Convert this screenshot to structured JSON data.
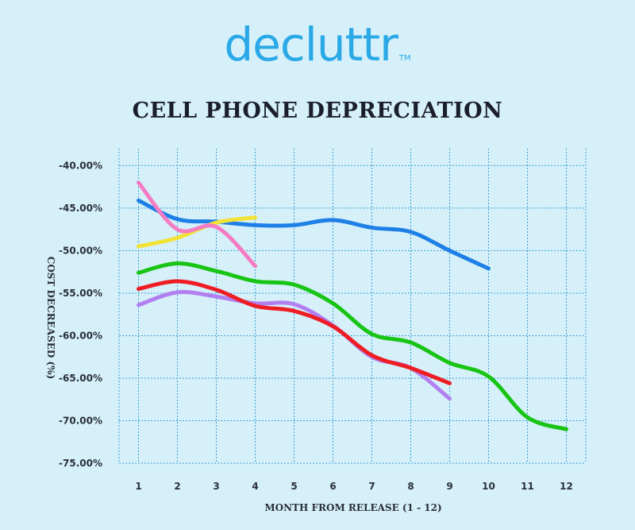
{
  "brand": {
    "logo_text": "decluttr",
    "logo_tm": "TM"
  },
  "chart_data": {
    "type": "line",
    "title": "CELL PHONE DEPRECIATION",
    "xlabel": "MONTH FROM RELEASE (1 - 12)",
    "ylabel": "COST DECREASED (%)",
    "x": [
      1,
      2,
      3,
      4,
      5,
      6,
      7,
      8,
      9,
      10,
      11,
      12
    ],
    "xlim": [
      0.5,
      12.5
    ],
    "ylim": [
      -75,
      -38
    ],
    "yticks": [
      -40,
      -45,
      -50,
      -55,
      -60,
      -65,
      -70,
      -75
    ],
    "ytick_labels": [
      "-40.00%",
      "-45.00%",
      "-50.00%",
      "-55.00%",
      "-60.00%",
      "-65.00%",
      "-70.00%",
      "-75.00%"
    ],
    "grid": true,
    "series": [
      {
        "color": "#1e7fe6",
        "x": [
          1,
          2,
          3,
          4,
          5,
          6,
          7,
          8,
          9,
          10
        ],
        "values": [
          -44.1,
          -46.3,
          -46.6,
          -47.0,
          -47.0,
          -46.4,
          -47.3,
          -47.8,
          -50.0,
          -52.1
        ]
      },
      {
        "color": "#f2e236",
        "x": [
          1,
          2,
          3,
          4
        ],
        "values": [
          -49.5,
          -48.5,
          -46.7,
          -46.1
        ]
      },
      {
        "color": "#f47cc4",
        "x": [
          1,
          2,
          3,
          4
        ],
        "values": [
          -42.0,
          -47.5,
          -47.2,
          -51.8
        ]
      },
      {
        "color": "#18c414",
        "x": [
          1,
          2,
          3,
          4,
          5,
          6,
          7,
          8,
          9,
          10,
          11,
          12
        ],
        "values": [
          -52.6,
          -51.5,
          -52.4,
          -53.6,
          -54.0,
          -56.2,
          -59.8,
          -60.8,
          -63.2,
          -64.8,
          -69.6,
          -71.0
        ]
      },
      {
        "color": "#b27ff0",
        "x": [
          1,
          2,
          3,
          4,
          5,
          6,
          7,
          8,
          9
        ],
        "values": [
          -56.4,
          -54.9,
          -55.4,
          -56.2,
          -56.3,
          -58.8,
          -62.5,
          -63.8,
          -67.4
        ]
      },
      {
        "color": "#ee1d24",
        "x": [
          1,
          2,
          3,
          4,
          5,
          6,
          7,
          8,
          9
        ],
        "values": [
          -54.5,
          -53.6,
          -54.6,
          -56.5,
          -57.1,
          -58.9,
          -62.3,
          -63.8,
          -65.6
        ]
      }
    ]
  }
}
